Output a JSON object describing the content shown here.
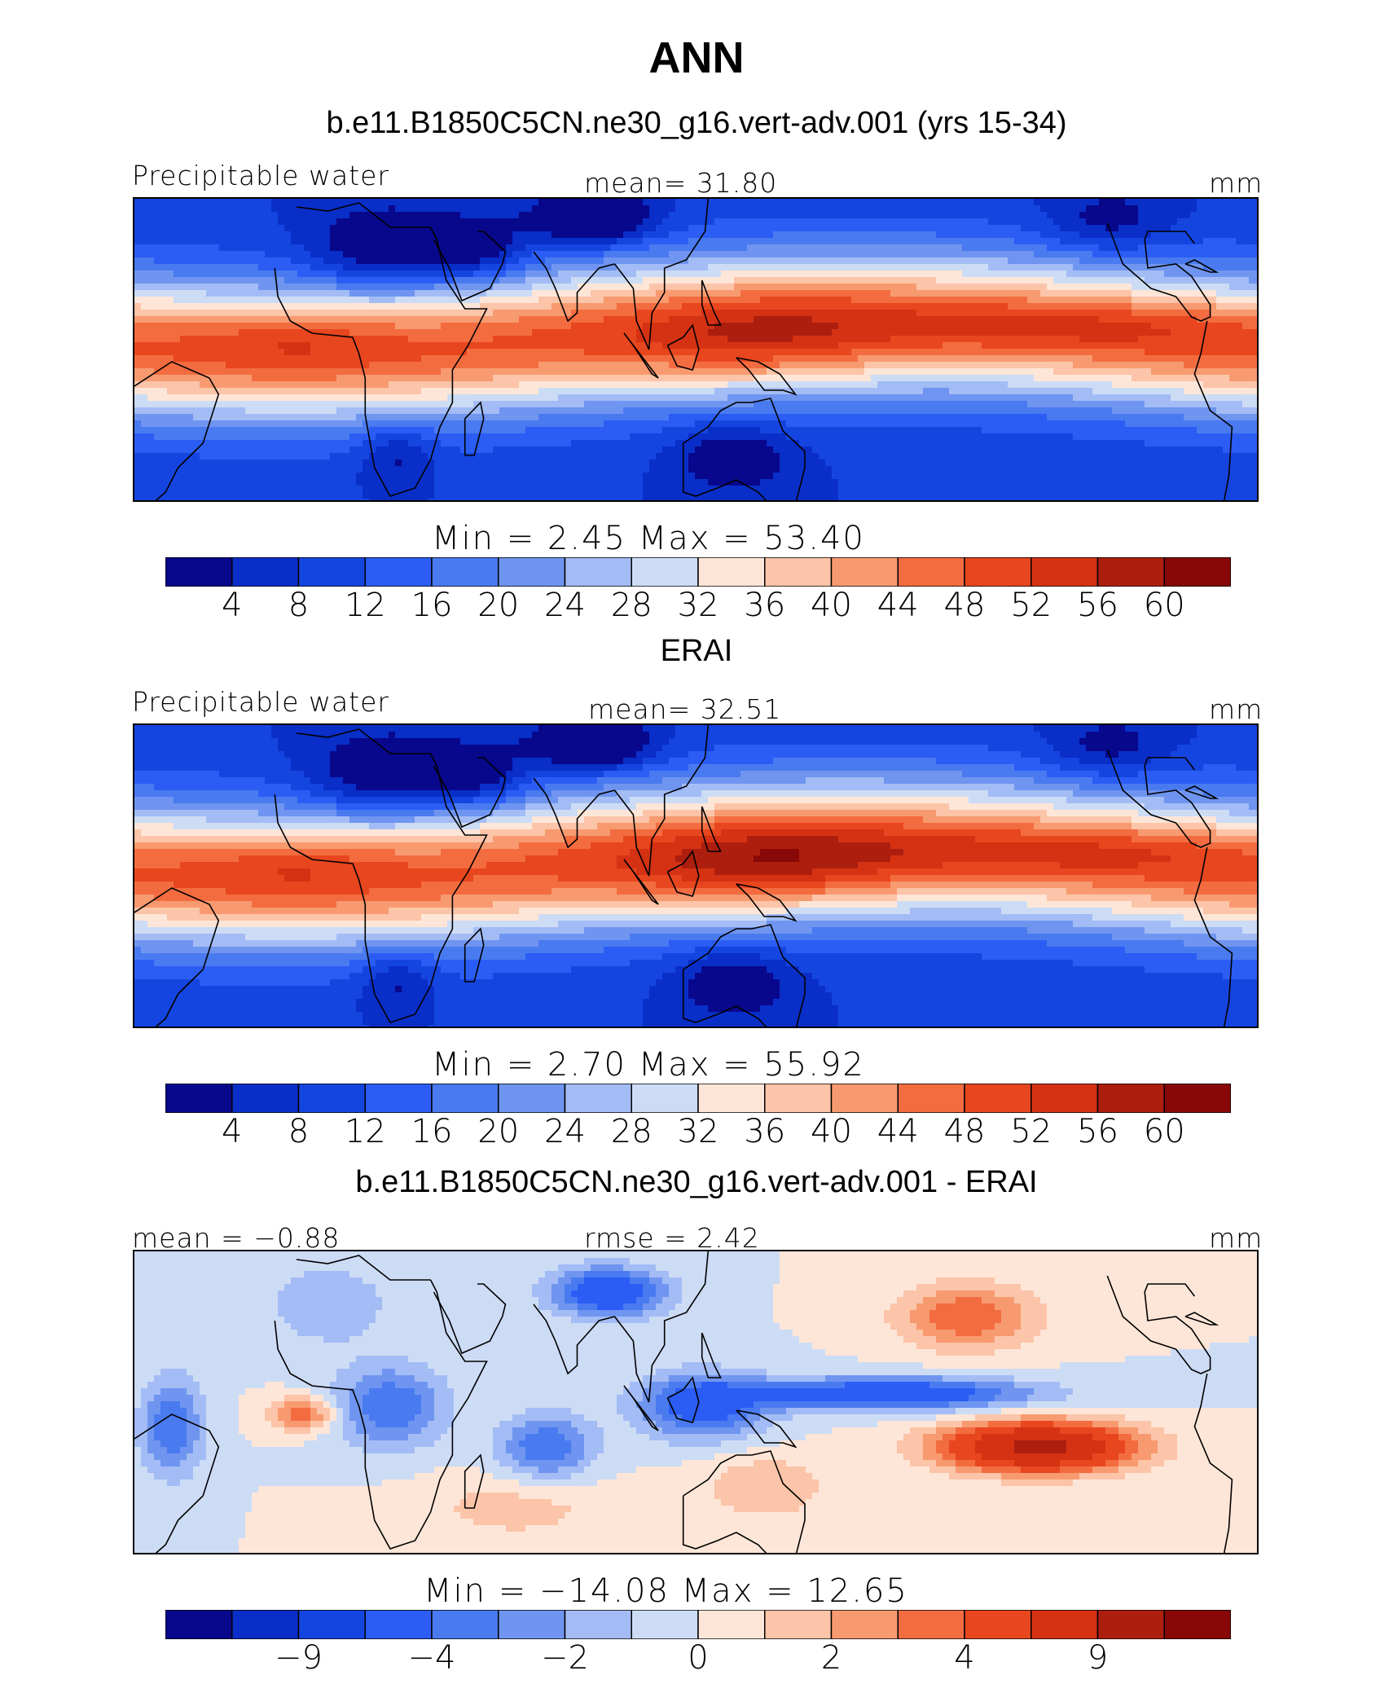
{
  "figure": {
    "title": "ANN",
    "units": "mm"
  },
  "panels": [
    {
      "title": "b.e11.B1850C5CN.ne30_g16.vert-adv.001 (yrs 15-34)",
      "left_label": "Precipitable water",
      "center_label": "mean=   31.80",
      "right_label": "mm",
      "minmax": "Min  =    2.45  Max  =   53.40",
      "kind": "model"
    },
    {
      "title": "ERAI",
      "left_label": "Precipitable water",
      "center_label": "mean=   32.51",
      "right_label": "mm",
      "minmax": "Min  =    2.70  Max  =   55.92",
      "kind": "obs"
    },
    {
      "title": "b.e11.B1850C5CN.ne30_g16.vert-adv.001 - ERAI",
      "left_label": "mean =  −0.88",
      "center_label": "rmse =     2.42",
      "right_label": "mm",
      "minmax": "Min  = −14.08  Max  =   12.65",
      "kind": "diff"
    }
  ],
  "colorbars": {
    "colors": [
      "#08088c",
      "#0a2ec8",
      "#1545e0",
      "#2b5df5",
      "#4a7af0",
      "#6f95f0",
      "#a3bcf5",
      "#cddcf5",
      "#fde6d8",
      "#fcc4a8",
      "#f89a70",
      "#f36c40",
      "#e8461e",
      "#d53214",
      "#ad1e0e",
      "#870807"
    ],
    "levels_abs": [
      "4",
      "8",
      "12",
      "16",
      "20",
      "24",
      "28",
      "32",
      "36",
      "40",
      "44",
      "48",
      "52",
      "56",
      "60"
    ],
    "levels_diff": [
      "−9",
      "−4",
      "−2",
      "0",
      "2",
      "4",
      "9"
    ]
  }
}
